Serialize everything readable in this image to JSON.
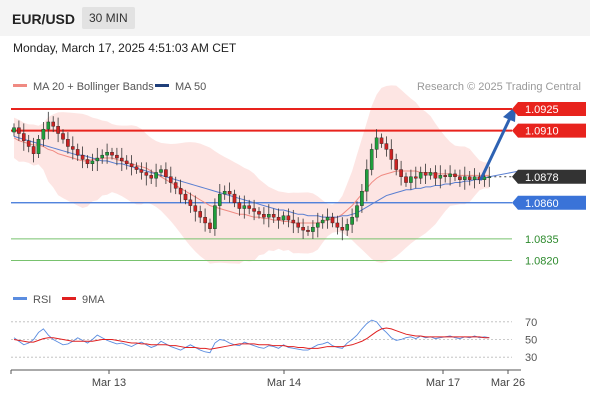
{
  "header": {
    "symbol": "EUR/USD",
    "timeframe": "30 MIN"
  },
  "datetime": "Monday, March 17, 2025 4:51:03 AM CET",
  "legend": {
    "ma20": "MA 20 + Bollinger Bands",
    "ma50": "MA 50",
    "rsi": "RSI",
    "ma9": "9MA"
  },
  "credit": "Research © 2025 Trading Central",
  "colors": {
    "resistance": "#e8231d",
    "support": "#3a73d8",
    "target": "#78c26e",
    "bull": "#1f9e3c",
    "bear": "#cc2222",
    "bands": "#fde0de",
    "ma20": "#f08a82",
    "ma50": "#5a7fd1",
    "rsi": "#5b8de0",
    "ma9": "#e02020",
    "current": "#333333",
    "arrow": "#2e62b3"
  },
  "chart_data": [
    {
      "type": "candlestick",
      "ylim": [
        1.0812,
        1.0934
      ],
      "x_ticks": [
        "Mar 13",
        "Mar 14",
        "Mar 17",
        "Mar 26"
      ],
      "levels": [
        {
          "label": "1.0925",
          "value": 1.0925,
          "kind": "resistance"
        },
        {
          "label": "1.0910",
          "value": 1.091,
          "kind": "resistance"
        },
        {
          "label": "1.0878",
          "value": 1.0878,
          "kind": "current"
        },
        {
          "label": "1.0860",
          "value": 1.086,
          "kind": "support"
        },
        {
          "label": "1.0835",
          "value": 1.0835,
          "kind": "target"
        },
        {
          "label": "1.0820",
          "value": 1.082,
          "kind": "target"
        }
      ],
      "close": [
        1.0912,
        1.0908,
        1.0903,
        1.0899,
        1.0894,
        1.0904,
        1.0911,
        1.0916,
        1.0913,
        1.0908,
        1.0904,
        1.0899,
        1.0897,
        1.0893,
        1.089,
        1.0887,
        1.0889,
        1.0891,
        1.0893,
        1.0895,
        1.0893,
        1.0891,
        1.0889,
        1.0887,
        1.0885,
        1.0883,
        1.0881,
        1.0879,
        1.0877,
        1.0881,
        1.0883,
        1.0878,
        1.0874,
        1.087,
        1.0866,
        1.0862,
        1.0858,
        1.0854,
        1.085,
        1.0846,
        1.0842,
        1.0858,
        1.0866,
        1.0868,
        1.0866,
        1.086,
        1.0856,
        1.0858,
        1.0856,
        1.0854,
        1.0852,
        1.085,
        1.0852,
        1.085,
        1.0848,
        1.0851,
        1.0848,
        1.0846,
        1.0843,
        1.0841,
        1.084,
        1.0843,
        1.0846,
        1.0848,
        1.085,
        1.0846,
        1.0843,
        1.0841,
        1.0845,
        1.085,
        1.0858,
        1.0868,
        1.0883,
        1.0897,
        1.0905,
        1.0901,
        1.0897,
        1.089,
        1.0883,
        1.0878,
        1.0874,
        1.0878,
        1.0877,
        1.0881,
        1.0879,
        1.0881,
        1.0877,
        1.0879,
        1.0878,
        1.088,
        1.0878,
        1.0876,
        1.0878,
        1.0876,
        1.0878,
        1.0876,
        1.0878,
        1.0878
      ],
      "ma20": [
        1.0905,
        1.0903,
        1.0902,
        1.0901,
        1.09,
        1.09,
        1.0899,
        1.0897,
        1.0896,
        1.0894,
        1.0893,
        1.0892,
        1.0891,
        1.089,
        1.0889,
        1.0889,
        1.089,
        1.089,
        1.0891,
        1.0891,
        1.0891,
        1.089,
        1.0889,
        1.0888,
        1.0887,
        1.0886,
        1.0885,
        1.0884,
        1.0882,
        1.088,
        1.0878,
        1.0876,
        1.0874,
        1.0872,
        1.087,
        1.0868,
        1.0866,
        1.0864,
        1.0862,
        1.086,
        1.0858,
        1.0857,
        1.0856,
        1.0855,
        1.0854,
        1.0853,
        1.0852,
        1.0852,
        1.0851,
        1.085,
        1.085,
        1.0849,
        1.0849,
        1.0848,
        1.0848,
        1.0847,
        1.0847,
        1.0846,
        1.0846,
        1.0846,
        1.0846,
        1.0846,
        1.0846,
        1.0847,
        1.0848,
        1.0849,
        1.085,
        1.0852,
        1.0855,
        1.0858,
        1.0862,
        1.0866,
        1.087,
        1.0874,
        1.0877,
        1.0879,
        1.088,
        1.0881,
        1.0882,
        1.0882,
        1.0882,
        1.0882,
        1.0882,
        1.0881,
        1.0881,
        1.0881,
        1.088,
        1.088,
        1.088,
        1.088,
        1.0879,
        1.0879,
        1.0879,
        1.0879,
        1.0879,
        1.0879,
        1.0879,
        1.0879
      ],
      "ma50": [
        1.0906,
        1.0905,
        1.0904,
        1.0903,
        1.0902,
        1.0901,
        1.09,
        1.0899,
        1.0898,
        1.0897,
        1.0896,
        1.0895,
        1.0894,
        1.0893,
        1.0893,
        1.0892,
        1.0891,
        1.089,
        1.0889,
        1.0889,
        1.0888,
        1.0887,
        1.0887,
        1.0886,
        1.0885,
        1.0884,
        1.0883,
        1.0882,
        1.0881,
        1.088,
        1.0879,
        1.0878,
        1.0877,
        1.0876,
        1.0875,
        1.0874,
        1.0873,
        1.0872,
        1.0871,
        1.087,
        1.0869,
        1.0868,
        1.0867,
        1.0866,
        1.0865,
        1.0864,
        1.0863,
        1.0862,
        1.0861,
        1.086,
        1.0859,
        1.0858,
        1.0857,
        1.0856,
        1.0855,
        1.0855,
        1.0854,
        1.0853,
        1.0852,
        1.0852,
        1.0851,
        1.0851,
        1.0851,
        1.085,
        1.085,
        1.085,
        1.085,
        1.0851,
        1.0851,
        1.0852,
        1.0853,
        1.0855,
        1.0857,
        1.0859,
        1.0861,
        1.0863,
        1.0865,
        1.0866,
        1.0867,
        1.0868,
        1.0869,
        1.0869,
        1.087,
        1.087,
        1.0871,
        1.0871,
        1.0872,
        1.0872,
        1.0873,
        1.0873,
        1.0874,
        1.0874,
        1.0875,
        1.0875,
        1.0876,
        1.0876,
        1.0877,
        1.0878
      ]
    },
    {
      "type": "line",
      "title": "RSI",
      "ylim": [
        20,
        80
      ],
      "y_ticks": [
        70,
        50,
        30
      ],
      "rsi": [
        52,
        48,
        44,
        46,
        50,
        58,
        62,
        55,
        50,
        47,
        44,
        45,
        48,
        52,
        49,
        46,
        50,
        55,
        52,
        49,
        47,
        45,
        46,
        44,
        42,
        45,
        47,
        44,
        41,
        43,
        48,
        45,
        42,
        40,
        38,
        41,
        44,
        41,
        38,
        36,
        35,
        46,
        50,
        49,
        46,
        44,
        43,
        47,
        45,
        43,
        41,
        40,
        43,
        42,
        40,
        44,
        41,
        40,
        39,
        38,
        38,
        41,
        44,
        45,
        47,
        43,
        41,
        40,
        46,
        50,
        55,
        62,
        68,
        72,
        70,
        63,
        58,
        52,
        49,
        50,
        52,
        53,
        51,
        54,
        52,
        53,
        51,
        52,
        53,
        54,
        52,
        51,
        53,
        52,
        54,
        52,
        53,
        52
      ],
      "ma9": [
        50,
        49,
        48,
        47,
        47,
        49,
        51,
        52,
        52,
        51,
        50,
        49,
        48,
        48,
        48,
        48,
        48,
        49,
        50,
        50,
        50,
        49,
        48,
        47,
        46,
        46,
        45,
        45,
        44,
        44,
        44,
        44,
        43,
        43,
        42,
        41,
        41,
        41,
        40,
        40,
        39,
        40,
        41,
        42,
        43,
        44,
        45,
        45,
        45,
        45,
        44,
        44,
        44,
        43,
        43,
        43,
        42,
        42,
        41,
        41,
        40,
        40,
        40,
        41,
        42,
        42,
        42,
        42,
        43,
        44,
        46,
        48,
        51,
        55,
        59,
        62,
        63,
        62,
        60,
        58,
        56,
        55,
        54,
        54,
        53,
        53,
        53,
        53,
        53,
        53,
        53,
        53,
        53,
        53,
        53,
        53,
        52,
        52
      ]
    }
  ]
}
